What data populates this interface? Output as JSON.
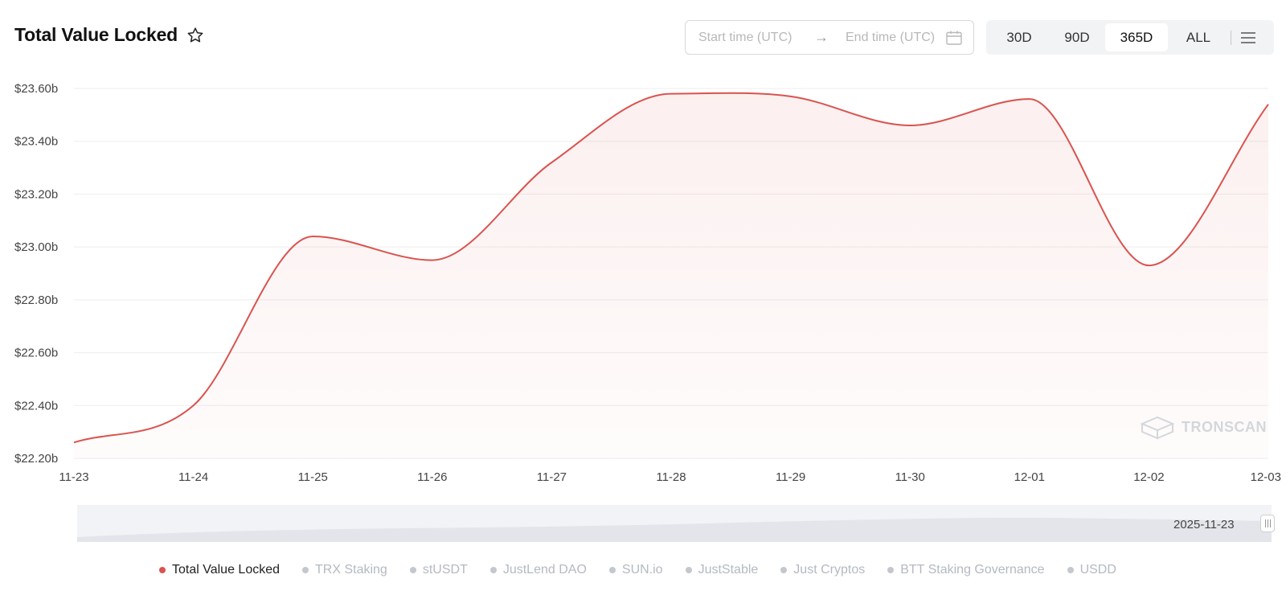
{
  "header": {
    "title": "Total Value Locked",
    "start_placeholder": "Start time (UTC)",
    "end_placeholder": "End time (UTC)",
    "ranges": [
      "30D",
      "90D",
      "365D",
      "ALL"
    ],
    "active_range": "365D"
  },
  "zoom": {
    "start_label": "2025-11-23"
  },
  "watermark": "TRONSCAN",
  "legend": [
    {
      "label": "Total Value Locked",
      "active": true
    },
    {
      "label": "TRX Staking",
      "active": false
    },
    {
      "label": "stUSDT",
      "active": false
    },
    {
      "label": "JustLend DAO",
      "active": false
    },
    {
      "label": "SUN.io",
      "active": false
    },
    {
      "label": "JustStable",
      "active": false
    },
    {
      "label": "Just Cryptos",
      "active": false
    },
    {
      "label": "BTT Staking Governance",
      "active": false
    },
    {
      "label": "USDD",
      "active": false
    }
  ],
  "colors": {
    "series": "#d9534f",
    "inactive": "#c3c7ce",
    "grid": "#eeeeee"
  },
  "chart_data": {
    "type": "area",
    "categories": [
      "11-23",
      "11-24",
      "11-25",
      "11-26",
      "11-27",
      "11-28",
      "11-29",
      "11-30",
      "12-01",
      "12-02",
      "12-03"
    ],
    "series": [
      {
        "name": "Total Value Locked",
        "values": [
          22.26,
          22.4,
          23.04,
          22.95,
          23.32,
          23.58,
          23.57,
          23.46,
          23.56,
          22.93,
          23.54
        ]
      }
    ],
    "y_tick_labels": [
      "$22.20b",
      "$22.40b",
      "$22.60b",
      "$22.80b",
      "$23.00b",
      "$23.20b",
      "$23.40b",
      "$23.60b"
    ],
    "ylim": [
      22.2,
      23.6
    ],
    "grid": true
  }
}
